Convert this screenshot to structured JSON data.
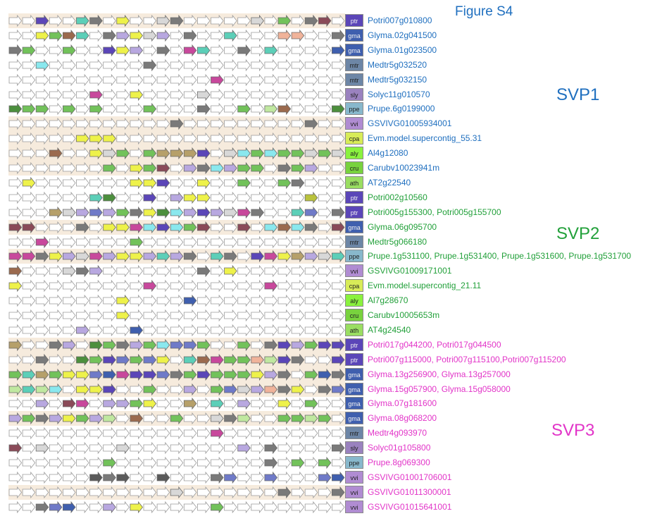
{
  "figure": {
    "title": "Figure S4"
  },
  "groups": [
    {
      "label": "SVP1",
      "color": "#1f6fbf"
    },
    {
      "label": "SVP2",
      "color": "#22a03a"
    },
    {
      "label": "SVP3",
      "color": "#e234c8"
    }
  ],
  "species_colors": {
    "ptr": "#5b46b8",
    "gma": "#3f5fae",
    "mtr": "#6d86a6",
    "sly": "#9a82bf",
    "ppe": "#88b8cc",
    "vvi": "#b08cd2",
    "cpa": "#d8ec58",
    "aly": "#8af23e",
    "cru": "#78d23e",
    "ath": "#9ade62"
  },
  "palette": {
    "w": "#ffffff",
    "p": "#5b46b8",
    "t": "#5ccfb8",
    "y": "#eef24a",
    "g": "#72c25a",
    "G": "#4c8f3d",
    "b": "#9b6a4e",
    "k": "#7a7a7a",
    "l": "#d8d8d8",
    "m": "#c8489c",
    "v": "#b8a8e0",
    "s": "#f0b39a",
    "c": "#8ae8ee",
    "o": "#b6a06a",
    "n": "#3f5fae",
    "d": "#5a5a5a",
    "h": "#c0e8a0",
    "r": "#8a4a58",
    "q": "#6f7ac8",
    "f": "#b9c23c"
  },
  "rows": [
    {
      "species": "ptr",
      "gene": "Potri007g010800",
      "group": 0,
      "band": true,
      "genes": "wwpwwtkwywwlkwwwwwlwgwkrw"
    },
    {
      "species": "gma",
      "gene": "Glyma.02g041500",
      "group": 0,
      "band": false,
      "genes": "wwygbtwkvylvwkwwtwwwsswwk"
    },
    {
      "species": "gma",
      "gene": "Glyma.01g023500",
      "group": 0,
      "band": false,
      "genes": "kgwwgwwpyvwkwmtwwkwtwwwwn"
    },
    {
      "species": "mtr",
      "gene": "Medtr5g032520",
      "group": 0,
      "band": false,
      "genes": "wwcwwwwwwwkwwwwwwwwwwwwww"
    },
    {
      "species": "mtr",
      "gene": "Medtr5g032150",
      "group": 0,
      "band": false,
      "genes": "wwwwwwwwwwwwwwwmwwwwwwwww"
    },
    {
      "species": "sly",
      "gene": "Solyc11g010570",
      "group": 0,
      "band": false,
      "genes": "wwwwwwmwwywwwwlwwwwwwwwww"
    },
    {
      "species": "ppe",
      "gene": "Prupe.6g0199000",
      "group": 0,
      "band": false,
      "genes": "GggwgwgwwwgwwwkwwgwhbwwwG"
    },
    {
      "species": "vvi",
      "gene": "GSVIVG01005934001",
      "group": 0,
      "band": true,
      "genes": "wwwwwwwwwwwwkwwwwwwwwwkww"
    },
    {
      "species": "cpa",
      "gene": "Evm.model.supercontig_55.31",
      "group": 0,
      "band": true,
      "genes": "wwwwwyyywwwwwwwwwwwwwwwww"
    },
    {
      "species": "aly",
      "gene": "Al4g12080",
      "group": 0,
      "band": true,
      "genes": "wwwbwwylgwgooopwlcgcgglgl"
    },
    {
      "species": "cru",
      "gene": "Carubv10023941m",
      "group": 0,
      "band": true,
      "genes": "wwwwwwwgwygrwvkcvggwkgvww"
    },
    {
      "species": "ath",
      "gene": "AT2g22540",
      "group": 0,
      "band": false,
      "genes": "wywwwwwwwyypwwywwgwwgkwww"
    },
    {
      "species": "ptr",
      "gene": "Potri002g10560",
      "group": 1,
      "band": false,
      "genes": "wwwwwwtGwwpwvyywwwwwwwfww"
    },
    {
      "species": "ptr",
      "gene": "Potri005g155300, Potri005g155700",
      "group": 1,
      "band": false,
      "genes": "wwwolvqvgkyGcvpvlmkwwtqwk"
    },
    {
      "species": "gma",
      "gene": "Glyma.06g095700",
      "group": 1,
      "band": true,
      "genes": "rrwwwkwyymcpcgrwwrwcbckwr"
    },
    {
      "species": "mtr",
      "gene": "Medtr5g066180",
      "group": 1,
      "band": false,
      "genes": "wwmwwwwwwgwwwwwwwwwwwwwww"
    },
    {
      "species": "ppe",
      "gene": "Prupe.1g531100, Prupe.1g531400, Prupe.1g531600, Prupe.1g531700",
      "group": 1,
      "band": true,
      "genes": "mmkyvlmvyyvtvkwtkwpmyovlt"
    },
    {
      "species": "vvi",
      "gene": "GSVIVG01009171001",
      "group": 1,
      "band": false,
      "genes": "bwwwlkvwwwwwwwkwywwwwwwww"
    },
    {
      "species": "cpa",
      "gene": "Evm.model.supercontig_21.11",
      "group": 1,
      "band": false,
      "genes": "ywwwwwwwwwmwwwwwwwwmwwwww"
    },
    {
      "species": "aly",
      "gene": "Al7g28670",
      "group": 1,
      "band": false,
      "genes": "wwwwwwwwywwwwnwwwwwwwwwww"
    },
    {
      "species": "cru",
      "gene": "Carubv10005653m",
      "group": 1,
      "band": false,
      "genes": "wwwwwwwwywwwwwwwwwwwwwwww"
    },
    {
      "species": "ath",
      "gene": "AT4g24540",
      "group": 1,
      "band": false,
      "genes": "wwwwwvwwwnwwwwwwwwwwwwwww"
    },
    {
      "species": "ptr",
      "gene": "Potri017g044200, Potri017g044500",
      "group": 2,
      "band": true,
      "genes": "owwkvwGgkvgcqqgwwgwkpvgpp"
    },
    {
      "species": "ptr",
      "gene": "Potri007g115000, Potri007g115100,Potri007g115200",
      "group": 2,
      "band": true,
      "genes": "wwkwwGgpqgqywtbmggshpkwwp"
    },
    {
      "species": "gma",
      "gene": "Glyma.13g256900, Glyma.13g257000",
      "group": 2,
      "band": true,
      "genes": "gtogyyqnmppqkgpgggyvkwgnk"
    },
    {
      "species": "gma",
      "gene": "Glyma.15g057900, Glyma.15g058000",
      "group": 2,
      "band": true,
      "genes": "hthcwyypwwgwwvwgqlvskywkq"
    },
    {
      "species": "gma",
      "gene": "Glyma.07g181600",
      "group": 2,
      "band": false,
      "genes": "wwvwrmwvvgywwowtwvwwywgww"
    },
    {
      "species": "gma",
      "gene": "Glyma.08g068200",
      "group": 2,
      "band": true,
      "genes": "vgkvygvhwbwwgwwlkhwwgghgw"
    },
    {
      "species": "mtr",
      "gene": "Medtr4g093970",
      "group": 2,
      "band": false,
      "genes": "wwwwwwwwwwwwwwwmwwwwwwwww"
    },
    {
      "species": "sly",
      "gene": "Solyc01g105800",
      "group": 2,
      "band": false,
      "genes": "rwlwwwwwlwwwwwwwwvwkwwwwk"
    },
    {
      "species": "ppe",
      "gene": "Prupe.8g069300",
      "group": 2,
      "band": false,
      "genes": "wwwwwwwgwwwwwwwwwwwkwgwgw"
    },
    {
      "species": "vvi",
      "gene": "GSVIVG01001706001",
      "group": 2,
      "band": false,
      "genes": "wwwwwwdkdwwdwwwkqwwqwwwqn"
    },
    {
      "species": "vvi",
      "gene": "GSVIVG01011300001",
      "group": 2,
      "band": true,
      "genes": "wwwwwwwwwwwwlwwwwwwwkwwwk"
    },
    {
      "species": "vvi",
      "gene": "GSVIVG01015641001",
      "group": 2,
      "band": false,
      "genes": "wwkqnwwvwywwwwwgwwwwwwwww"
    }
  ]
}
